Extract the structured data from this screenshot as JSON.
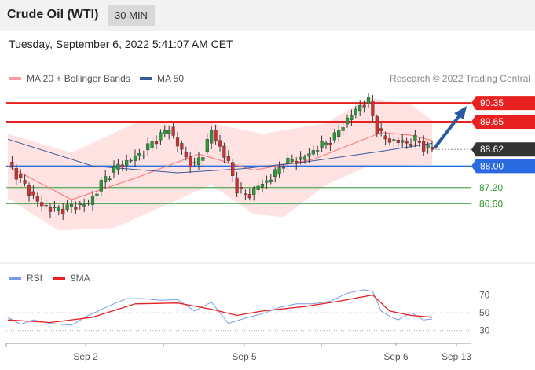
{
  "header": {
    "title": "Crude Oil (WTI)",
    "timeframe": "30 MIN"
  },
  "timestamp": "Tuesday, September 6, 2022 5:41:07 AM CET",
  "colors": {
    "bollinger_fill": "#ffd9d9",
    "ma20": "#ff7f7f",
    "ma50": "#3a5a9a",
    "resistance": "#e82020",
    "pivot": "#2a6ae0",
    "support": "#2e9a2e",
    "candle_up": "#2a9a3a",
    "candle_down": "#d03030",
    "arrow": "#2a5aa0",
    "last_price": "#333333",
    "rsi": "#7a9ae8",
    "rsi_ma": "#e82020"
  },
  "chart_data": [
    {
      "type": "candlestick",
      "legend": [
        {
          "label": "MA 20 + Bollinger Bands",
          "color": "#ff9a9a"
        },
        {
          "label": "MA 50",
          "color": "#3a5a9a"
        }
      ],
      "legend_placement": "top-left",
      "credit": "Research © 2022 Trading Central",
      "x_ticks": [
        "Sep 2",
        "Sep 5",
        "Sep 6",
        "Sep 13"
      ],
      "ylim": [
        85.0,
        90.85
      ],
      "levels": [
        {
          "label": "90.35",
          "value": 90.35,
          "type": "resistance"
        },
        {
          "label": "89.65",
          "value": 89.65,
          "type": "resistance"
        },
        {
          "label": "88.62",
          "value": 88.62,
          "type": "last"
        },
        {
          "label": "88.00",
          "value": 88.0,
          "type": "pivot"
        },
        {
          "label": "87.20",
          "value": 87.2,
          "type": "support"
        },
        {
          "label": "86.60",
          "value": 86.6,
          "type": "support"
        }
      ],
      "arrow_target": 90.35,
      "segments": [
        {
          "from": 0,
          "to": 19,
          "prices": [
            88.15,
            87.3,
            86.55,
            86.35,
            86.5,
            86.6
          ]
        },
        {
          "from": 19,
          "to": 38,
          "prices": [
            86.6,
            87.4,
            87.95,
            88.2,
            88.5,
            89.0,
            89.4
          ]
        },
        {
          "from": 38,
          "to": 52,
          "prices": [
            89.4,
            88.8,
            88.3,
            88.0,
            88.5,
            89.3,
            88.7,
            88.1
          ]
        },
        {
          "from": 52,
          "to": 63,
          "prices": [
            88.1,
            87.2,
            86.9,
            87.0,
            87.3,
            87.45,
            87.75
          ]
        },
        {
          "from": 63,
          "to": 85,
          "prices": [
            87.75,
            88.1,
            88.2,
            88.25,
            88.45,
            88.7,
            88.85,
            89.1,
            89.55,
            89.9,
            90.25,
            90.4
          ]
        },
        {
          "from": 85,
          "to": 100,
          "prices": [
            90.4,
            89.4,
            89.0,
            88.95,
            88.9,
            88.85,
            89.0,
            88.7,
            88.62
          ]
        }
      ],
      "ma20_points": [
        [
          0,
          88.0
        ],
        [
          15,
          86.75
        ],
        [
          30,
          87.55
        ],
        [
          45,
          88.45
        ],
        [
          58,
          87.85
        ],
        [
          72,
          88.25
        ],
        [
          88,
          89.25
        ],
        [
          95,
          89.15
        ],
        [
          100,
          88.95
        ]
      ],
      "ma50_points": [
        [
          0,
          89.0
        ],
        [
          20,
          88.0
        ],
        [
          40,
          87.75
        ],
        [
          55,
          87.9
        ],
        [
          70,
          88.15
        ],
        [
          88,
          88.55
        ],
        [
          100,
          88.85
        ]
      ],
      "bb_upper_points": [
        [
          0,
          89.2
        ],
        [
          15,
          88.5
        ],
        [
          30,
          89.6
        ],
        [
          45,
          89.7
        ],
        [
          60,
          89.2
        ],
        [
          75,
          89.6
        ],
        [
          85,
          90.55
        ],
        [
          95,
          90.3
        ],
        [
          100,
          89.7
        ]
      ],
      "bb_lower_points": [
        [
          0,
          86.8
        ],
        [
          12,
          85.6
        ],
        [
          25,
          85.7
        ],
        [
          38,
          86.6
        ],
        [
          48,
          87.3
        ],
        [
          58,
          86.2
        ],
        [
          65,
          86.1
        ],
        [
          75,
          87.3
        ],
        [
          85,
          88.0
        ],
        [
          100,
          88.05
        ]
      ]
    },
    {
      "type": "line",
      "legend": [
        {
          "label": "RSI",
          "color": "#7a9ae8"
        },
        {
          "label": "9MA",
          "color": "#e82020"
        }
      ],
      "ylim": [
        20,
        82
      ],
      "y_ticks": [
        {
          "label": "70",
          "value": 70
        },
        {
          "label": "50",
          "value": 50
        },
        {
          "label": "30",
          "value": 30
        }
      ],
      "series": [
        {
          "name": "RSI",
          "x": [
            0,
            3,
            6,
            10,
            15,
            19,
            24,
            28,
            32,
            36,
            40,
            44,
            48,
            52,
            56,
            60,
            64,
            68,
            72,
            76,
            80,
            84,
            86,
            88,
            90,
            92,
            95,
            98,
            100
          ],
          "y": [
            45,
            37,
            42,
            38,
            36,
            47,
            58,
            66,
            66,
            64,
            65,
            52,
            62,
            38,
            44,
            49,
            56,
            60,
            60,
            63,
            72,
            76,
            74,
            52,
            46,
            42,
            50,
            42,
            43
          ]
        },
        {
          "name": "9MA",
          "x": [
            0,
            10,
            20,
            30,
            40,
            48,
            54,
            60,
            70,
            78,
            86,
            90,
            95,
            100
          ],
          "y": [
            42,
            39,
            45,
            60,
            61,
            54,
            47,
            52,
            57,
            63,
            70,
            52,
            47,
            45
          ]
        }
      ]
    }
  ]
}
